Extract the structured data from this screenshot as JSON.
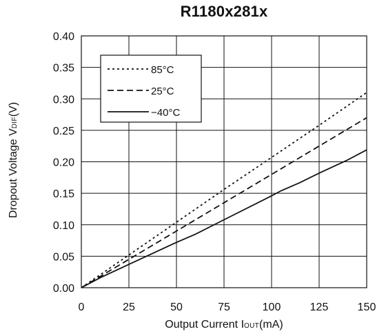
{
  "chart_data": {
    "type": "line",
    "title": "R1180x281x",
    "xlabel": {
      "main": "Output Current I",
      "sub": "OUT",
      "unit": "(mA)"
    },
    "ylabel": {
      "main": "Dropout Voltage V",
      "sub": "DIF",
      "unit": "(V)"
    },
    "xlim": [
      0,
      150
    ],
    "ylim": [
      0,
      0.4
    ],
    "x_ticks": [
      "0",
      "25",
      "50",
      "75",
      "100",
      "125",
      "150"
    ],
    "y_ticks": [
      "0.00",
      "0.05",
      "0.10",
      "0.15",
      "0.20",
      "0.25",
      "0.30",
      "0.35",
      "0.40"
    ],
    "grid": true,
    "legend_position": "top-left",
    "series": [
      {
        "name": "85°C",
        "style": "dotted",
        "x": [
          0,
          25,
          50,
          75,
          100,
          125,
          150
        ],
        "y": [
          0,
          0.052,
          0.104,
          0.156,
          0.207,
          0.258,
          0.31
        ]
      },
      {
        "name": "25°C",
        "style": "dashed",
        "x": [
          0,
          25,
          50,
          75,
          100,
          125,
          150
        ],
        "y": [
          0,
          0.045,
          0.09,
          0.135,
          0.18,
          0.225,
          0.27
        ]
      },
      {
        "name": "−40°C",
        "style": "solid",
        "x": [
          0,
          10,
          25,
          50,
          60,
          75,
          100,
          105,
          115,
          125,
          140,
          150
        ],
        "y": [
          0,
          0.016,
          0.037,
          0.072,
          0.085,
          0.108,
          0.146,
          0.154,
          0.167,
          0.182,
          0.203,
          0.219
        ]
      }
    ]
  }
}
